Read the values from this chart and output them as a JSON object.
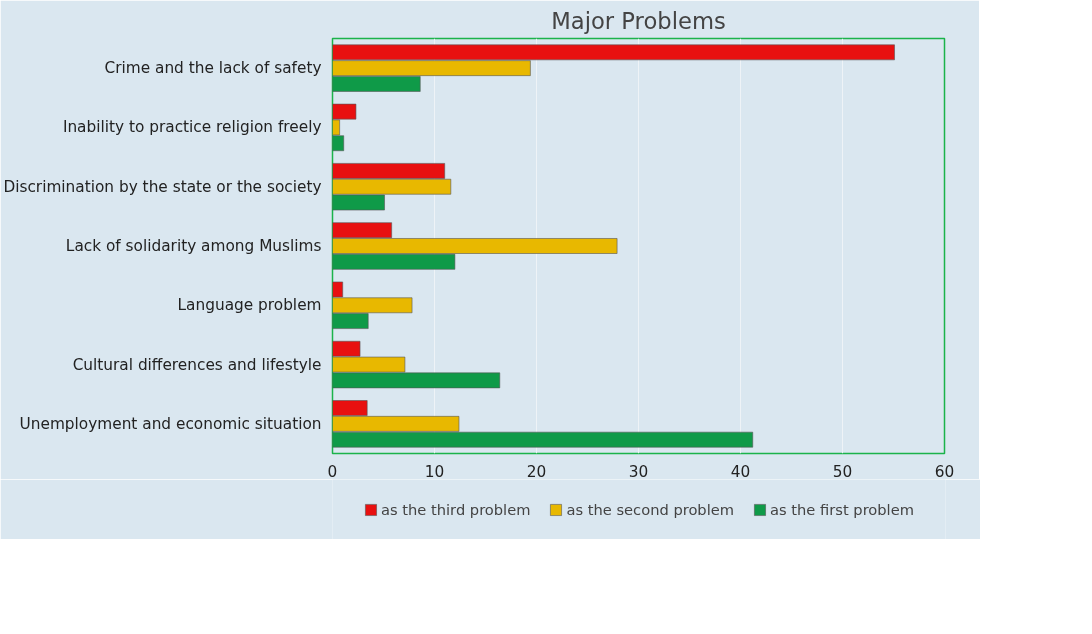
{
  "chart_data": {
    "type": "bar",
    "orientation": "horizontal",
    "title": "Major Problems",
    "categories": [
      "Crime and the lack of safety",
      "Inability to practice religion freely",
      "Discrimination by the state or the society",
      "Lack of solidarity among Muslims",
      "Language problem",
      "Cultural differences and lifestyle",
      "Unemployment and economic situation"
    ],
    "series": [
      {
        "name": "as the third problem",
        "color": "#e81010",
        "values": [
          55.1,
          2.3,
          11.0,
          5.8,
          1.0,
          2.7,
          3.4
        ]
      },
      {
        "name": "as the second problem",
        "color": "#e8b800",
        "values": [
          19.4,
          0.7,
          11.6,
          27.9,
          7.8,
          7.1,
          12.4
        ]
      },
      {
        "name": "as the first problem",
        "color": "#0f9a48",
        "values": [
          8.6,
          1.1,
          5.1,
          12.0,
          3.5,
          16.4,
          41.2
        ]
      }
    ],
    "xlim": [
      0,
      60
    ],
    "xticks": [
      0,
      10,
      20,
      30,
      40,
      50,
      60
    ],
    "grid": "x",
    "legend": "bottom"
  }
}
